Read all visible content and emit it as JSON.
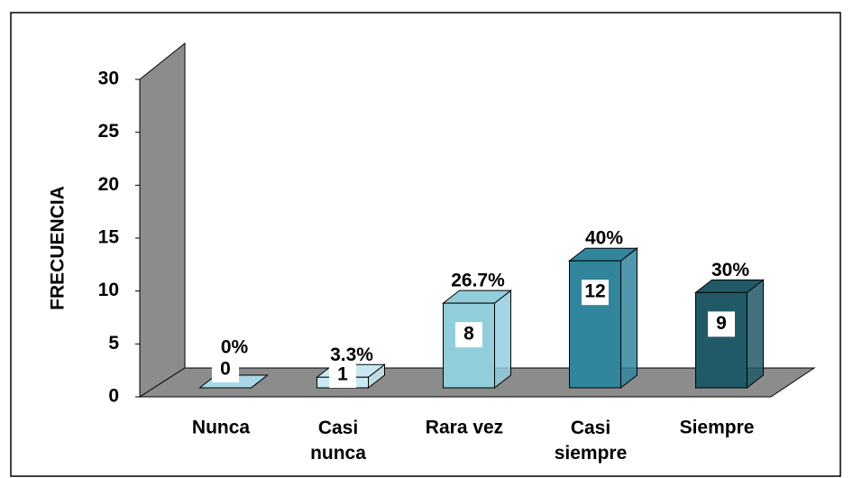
{
  "chart_data": {
    "type": "bar3d",
    "y_label": "FRECUENCIA",
    "categories": [
      "Nunca",
      "Casi\nnunca",
      "Rara vez",
      "Casi\nsiempre",
      "Siempre"
    ],
    "values": [
      0,
      1,
      8,
      12,
      9
    ],
    "percent_labels": [
      "0%",
      "3.3%",
      "26.7%",
      "40%",
      "30%"
    ],
    "colors": [
      "#a8d8e8",
      "#c9e9f2",
      "#92cddc",
      "#31859c",
      "#215967"
    ],
    "ylim": [
      0,
      30
    ],
    "yticks": [
      0,
      5,
      10,
      15,
      20,
      25,
      30
    ]
  }
}
